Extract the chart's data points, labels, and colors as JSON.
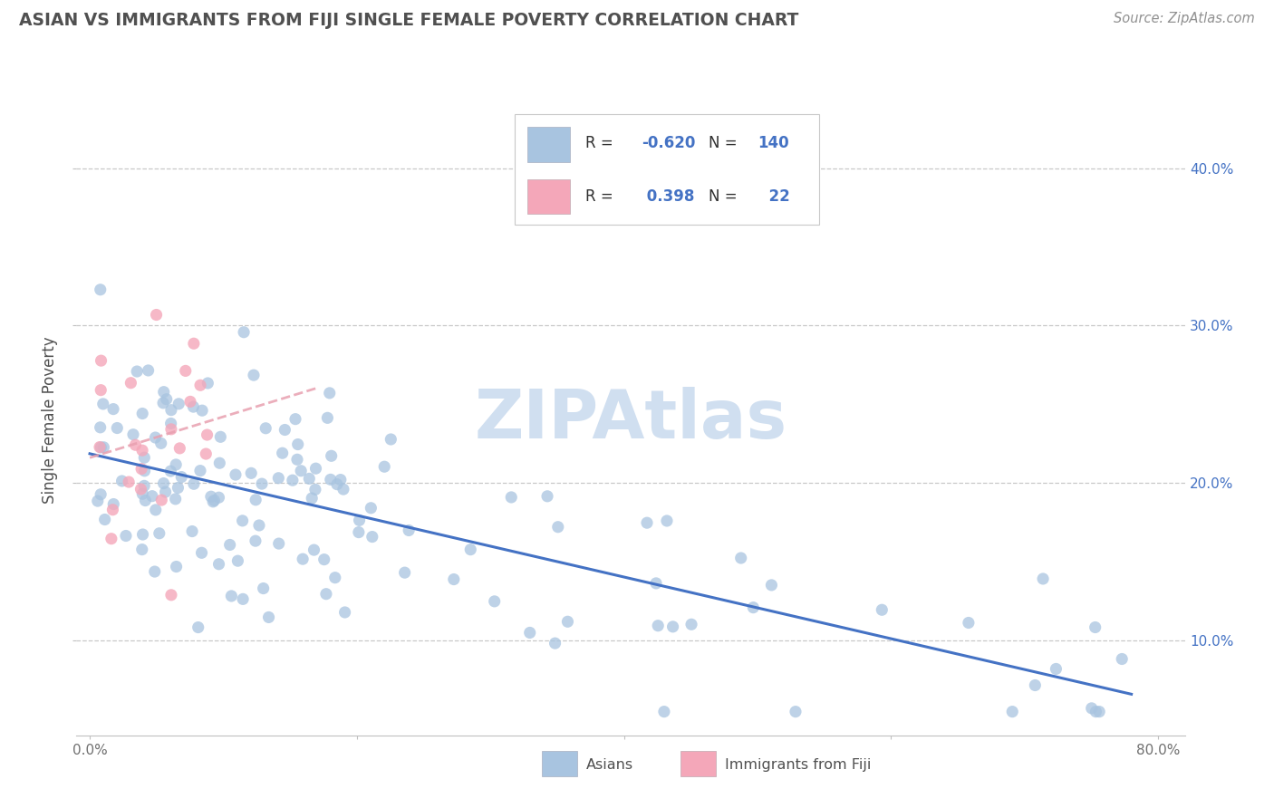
{
  "title": "ASIAN VS IMMIGRANTS FROM FIJI SINGLE FEMALE POVERTY CORRELATION CHART",
  "source": "Source: ZipAtlas.com",
  "ylabel": "Single Female Poverty",
  "watermark": "ZIPAtlas",
  "legend_labels": [
    "Asians",
    "Immigrants from Fiji"
  ],
  "legend_r_vals": [
    "-0.620",
    "0.398"
  ],
  "legend_n_vals": [
    "140",
    "22"
  ],
  "xlim": [
    -0.01,
    0.82
  ],
  "ylim": [
    0.04,
    0.44
  ],
  "xticks": [
    0.0,
    0.2,
    0.4,
    0.6,
    0.8
  ],
  "yticks": [
    0.1,
    0.2,
    0.3,
    0.4
  ],
  "xtick_labels_bottom": [
    "0.0%",
    "",
    "",
    "",
    "80.0%"
  ],
  "ytick_labels_right": [
    "10.0%",
    "20.0%",
    "30.0%",
    "40.0%"
  ],
  "color_asian": "#A8C4E0",
  "color_fiji": "#F4A7B9",
  "color_trendline_asian": "#4472C4",
  "color_trendline_fiji": "#E8A0B0",
  "background_color": "#FFFFFF",
  "grid_color": "#C8C8C8",
  "title_color": "#505050",
  "source_color": "#909090",
  "text_color_dark": "#303030",
  "text_color_blue": "#4472C4",
  "watermark_color": "#D0DFF0"
}
